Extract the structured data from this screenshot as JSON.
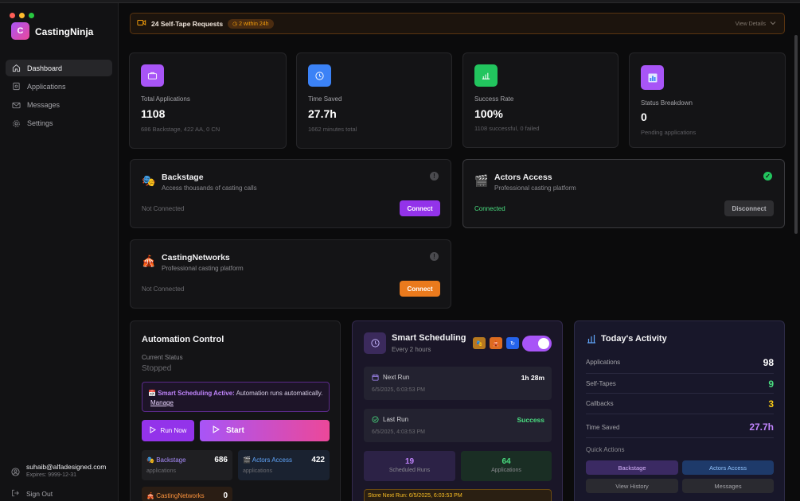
{
  "app": {
    "name": "CastingNinja",
    "logo_letter": "C"
  },
  "sidebar": {
    "items": [
      {
        "label": "Dashboard",
        "icon": "home-icon",
        "active": true
      },
      {
        "label": "Applications",
        "icon": "file-icon"
      },
      {
        "label": "Messages",
        "icon": "mail-icon"
      },
      {
        "label": "Settings",
        "icon": "gear-icon"
      }
    ],
    "user_email": "suhaib@alfadesigned.com",
    "user_expires": "Expires: 9999-12-31",
    "sign_out": "Sign Out"
  },
  "banner": {
    "title": "24 Self-Tape Requests",
    "badge": "2 within 24h",
    "action": "View Details"
  },
  "stats": [
    {
      "label": "Total Applications",
      "value": "1108",
      "sub": "686 Backstage, 422 AA, 0 CN",
      "color": "#a855f7"
    },
    {
      "label": "Time Saved",
      "value": "27.7h",
      "sub": "1662 minutes total",
      "color": "#3b82f6"
    },
    {
      "label": "Success Rate",
      "value": "100%",
      "sub": "1108 successful, 0 failed",
      "color": "#22c55e"
    },
    {
      "label": "Status Breakdown",
      "value": "0",
      "sub": "Pending applications",
      "color": "#a855f7"
    }
  ],
  "services": {
    "backstage": {
      "emoji": "🎭",
      "name": "Backstage",
      "desc": "Access thousands of casting calls",
      "status": "Not Connected",
      "button": "Connect"
    },
    "actors_access": {
      "emoji": "🎬",
      "name": "Actors Access",
      "desc": "Professional casting platform",
      "status": "Connected",
      "button": "Disconnect"
    },
    "casting_networks": {
      "emoji": "🎪",
      "name": "CastingNetworks",
      "desc": "Professional casting platform",
      "status": "Not Connected",
      "button": "Connect"
    }
  },
  "automation": {
    "title": "Automation Control",
    "status_label": "Current Status",
    "status_value": "Stopped",
    "notice_bold": "Smart Scheduling Active:",
    "notice_text": "Automation runs automatically.",
    "notice_link": "Manage",
    "run_now": "Run Now",
    "start": "Start",
    "platforms": [
      {
        "name": "Backstage",
        "emoji": "🎭",
        "count": "686",
        "sub": "applications"
      },
      {
        "name": "Actors Access",
        "emoji": "🎬",
        "count": "422",
        "sub": "applications"
      },
      {
        "name": "CastingNetworks",
        "emoji": "🎪",
        "count": "0",
        "sub": ""
      }
    ]
  },
  "scheduling": {
    "title": "Smart Scheduling",
    "subtitle": "Every 2 hours",
    "toggle_on": true,
    "next_run_label": "Next Run",
    "next_run_in": "1h 28m",
    "next_run_date": "6/5/2025, 6:03:53 PM",
    "last_run_label": "Last Run",
    "last_run_status": "Success",
    "last_run_date": "6/5/2025, 4:03:53 PM",
    "scheduled_runs": "19",
    "scheduled_runs_label": "Scheduled Runs",
    "applications": "64",
    "applications_label": "Applications",
    "store_next_run": "Store Next Run: 6/5/2025, 6:03:53 PM"
  },
  "activity": {
    "title": "Today's Activity",
    "rows": [
      {
        "label": "Applications",
        "value": "98",
        "color": "#ffffff"
      },
      {
        "label": "Self-Tapes",
        "value": "9",
        "color": "#4ade80"
      },
      {
        "label": "Callbacks",
        "value": "3",
        "color": "#facc15"
      },
      {
        "label": "Time Saved",
        "value": "27.7h",
        "color": "#c084fc"
      }
    ],
    "quick_actions_label": "Quick Actions",
    "actions": [
      "Backstage",
      "Actors Access",
      "View History",
      "Messages"
    ]
  }
}
